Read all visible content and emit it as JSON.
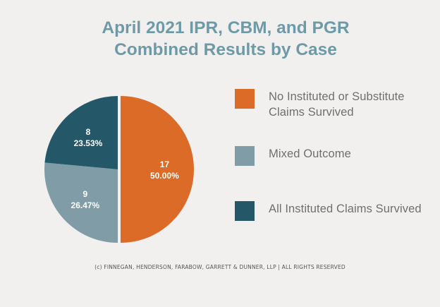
{
  "chart_data": {
    "type": "pie",
    "title": "April 2021 IPR, CBM, and PGR Combined Results by Case",
    "title_lines": [
      "April 2021 IPR, CBM, and PGR",
      "Combined Results by Case"
    ],
    "slices": [
      {
        "label": "No Instituted or Substitute Claims Survived",
        "value": 17,
        "percent": "50.00%",
        "color": "#dc6b27"
      },
      {
        "label": "Mixed Outcome",
        "value": 9,
        "percent": "26.47%",
        "color": "#809ca6"
      },
      {
        "label": "All Instituted Claims Survived",
        "value": 8,
        "percent": "23.53%",
        "color": "#245868"
      }
    ],
    "legend": {
      "position": "right",
      "items": [
        {
          "label": "No Instituted or Substitute Claims Survived",
          "color": "#dc6b27"
        },
        {
          "label": "Mixed Outcome",
          "color": "#809ca6"
        },
        {
          "label": "All Instituted Claims Survived",
          "color": "#245868"
        }
      ]
    }
  },
  "footer": "(c) FINNEGAN, HENDERSON, FARABOW, GARRETT & DUNNER, LLP | ALL RIGHTS RESERVED"
}
